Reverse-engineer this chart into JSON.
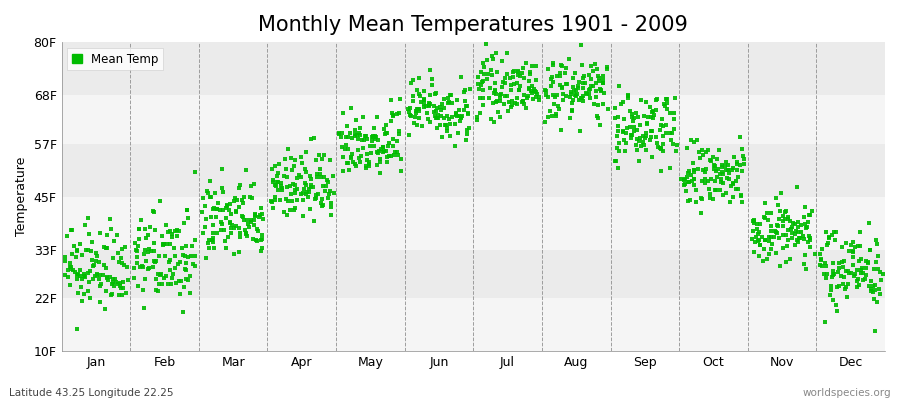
{
  "title": "Monthly Mean Temperatures 1901 - 2009",
  "ylabel": "Temperature",
  "yticks": [
    10,
    22,
    33,
    45,
    57,
    68,
    80
  ],
  "ytick_labels": [
    "10F",
    "22F",
    "33F",
    "45F",
    "57F",
    "68F",
    "80F"
  ],
  "ylim": [
    10,
    80
  ],
  "months": [
    "Jan",
    "Feb",
    "Mar",
    "Apr",
    "May",
    "Jun",
    "Jul",
    "Aug",
    "Sep",
    "Oct",
    "Nov",
    "Dec"
  ],
  "dot_color": "#00bb00",
  "background_color": "#ffffff",
  "band_colors": [
    "#f5f5f5",
    "#ebebeb"
  ],
  "footer_left": "Latitude 43.25 Longitude 22.25",
  "footer_right": "worldspecies.org",
  "legend_label": "Mean Temp",
  "title_fontsize": 15,
  "axis_fontsize": 9,
  "mean_temps_F": [
    28.5,
    31.0,
    39.5,
    47.5,
    57.5,
    65.0,
    69.5,
    69.0,
    60.5,
    49.5,
    37.0,
    29.0
  ],
  "std_temps_F": [
    4.5,
    5.0,
    4.5,
    4.0,
    4.0,
    3.5,
    3.0,
    3.5,
    4.0,
    4.0,
    4.0,
    4.5
  ],
  "n_years": 109,
  "year_start": 1901,
  "year_end": 2009
}
